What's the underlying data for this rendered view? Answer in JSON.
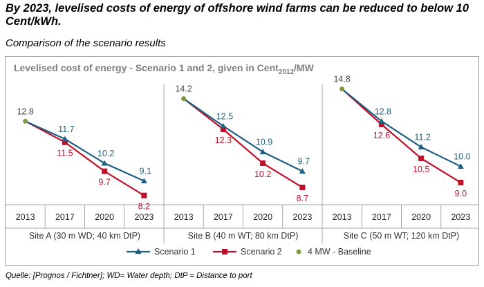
{
  "headline": "By 2023, levelised costs of energy of offshore wind farms can be reduced to below 10 Cent/kWh.",
  "subtitle": "Comparison of the scenario results",
  "footer": "Quelle: [Prognos / Fichtner]; WD= Water depth; DtP = Distance to port",
  "colors": {
    "scenario1": "#1f5f7f",
    "scenario2": "#c0102a",
    "baseline": "#7d9a3c",
    "title": "#7f7f7f"
  },
  "chart_data": {
    "type": "line",
    "title_main": "Levelised cost of energy - Scenario 1 and 2, given in Cent",
    "title_sub": "2012",
    "title_unit": "/MW",
    "categories": [
      "2013",
      "2017",
      "2020",
      "2023"
    ],
    "ylim": [
      7.5,
      15.0
    ],
    "panels": [
      {
        "site": "Site A (30 m WD; 40 km DtP)",
        "baseline": 12.8,
        "scenario1": [
          12.8,
          11.7,
          10.2,
          9.1
        ],
        "scenario2": [
          12.8,
          11.5,
          9.7,
          8.2
        ],
        "labels1": [
          "11.7",
          "10.2",
          "9.1"
        ],
        "labels2": [
          "11.5",
          "9.7",
          "8.2"
        ],
        "baseline_label": "12.8"
      },
      {
        "site": "Site B (40 m WT; 80 km DtP)",
        "baseline": 14.2,
        "scenario1": [
          14.2,
          12.5,
          10.9,
          9.7
        ],
        "scenario2": [
          14.2,
          12.3,
          10.2,
          8.7
        ],
        "labels1": [
          "12.5",
          "10.9",
          "9.7"
        ],
        "labels2": [
          "12.3",
          "10.2",
          "8.7"
        ],
        "baseline_label": "14.2"
      },
      {
        "site": "Site C (50 m WT; 120 km DtP)",
        "baseline": 14.8,
        "scenario1": [
          14.8,
          12.8,
          11.2,
          10.0
        ],
        "scenario2": [
          14.8,
          12.6,
          10.5,
          9.0
        ],
        "labels1": [
          "12.8",
          "11.2",
          "10.0"
        ],
        "labels2": [
          "12.6",
          "10.5",
          "9.0"
        ],
        "baseline_label": "14.8"
      }
    ],
    "legend": [
      "Scenario 1",
      "Scenario 2",
      "4 MW - Baseline"
    ]
  }
}
